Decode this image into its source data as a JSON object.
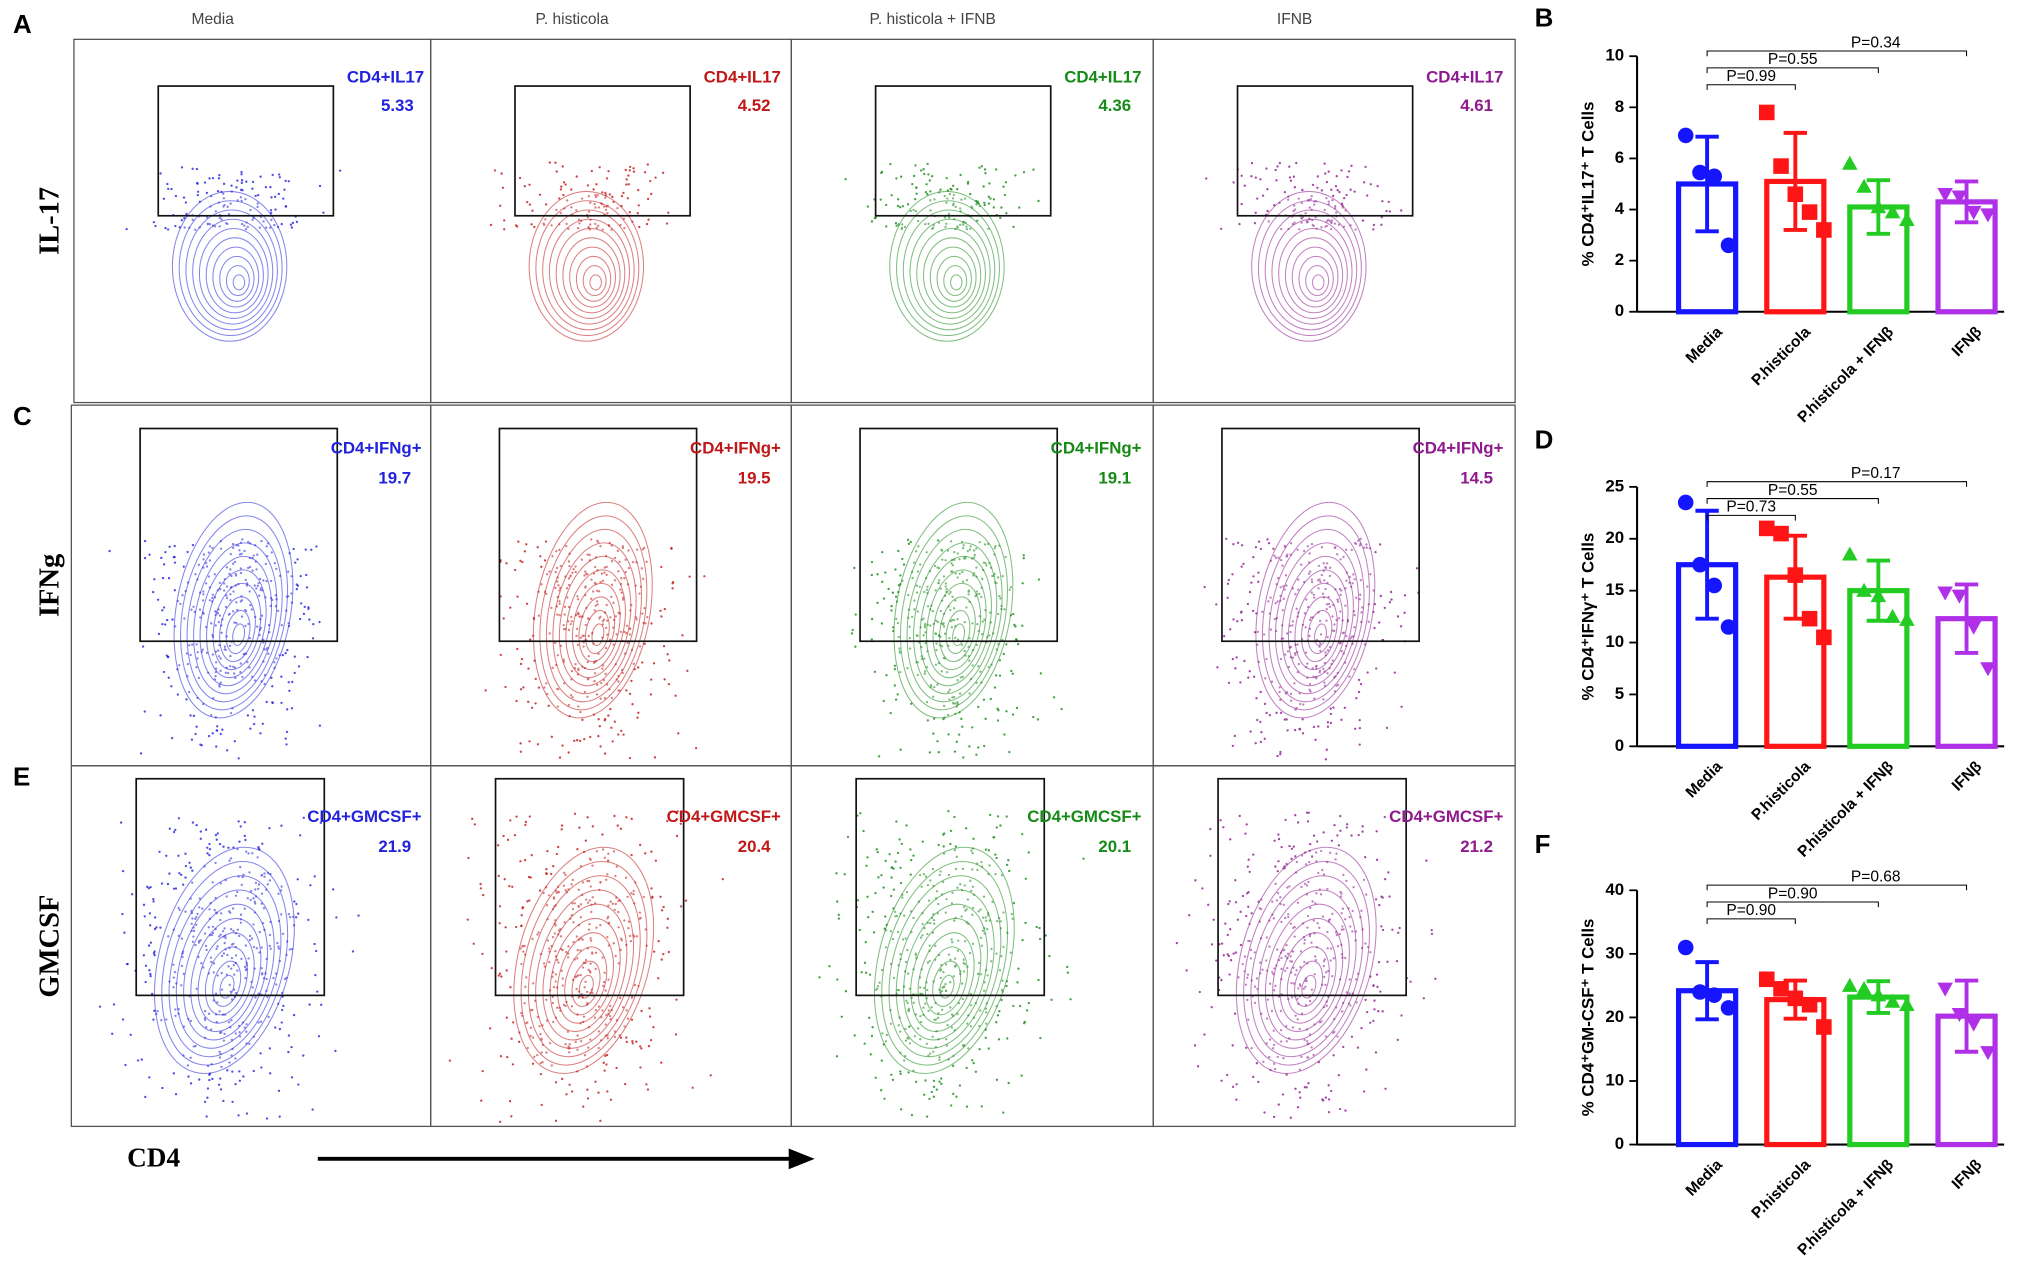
{
  "flow": {
    "columns": [
      "Media",
      "P. histicola",
      "P. histicola + IFNB",
      "IFNB"
    ],
    "colors": [
      "#2222dd",
      "#c01818",
      "#168a16",
      "#8e1a8e"
    ],
    "rows": [
      {
        "letter": "A",
        "label": "IL-17",
        "gates": [
          {
            "name": "CD4+IL17",
            "value": 5.33
          },
          {
            "name": "CD4+IL17",
            "value": 4.52
          },
          {
            "name": "CD4+IL17",
            "value": 4.36
          },
          {
            "name": "CD4+IL17",
            "value": 4.61
          }
        ]
      },
      {
        "letter": "C",
        "label": "IFNg",
        "gates": [
          {
            "name": "CD4+IFNg+",
            "value": 19.7
          },
          {
            "name": "CD4+IFNg+",
            "value": 19.5
          },
          {
            "name": "CD4+IFNg+",
            "value": 19.1
          },
          {
            "name": "CD4+IFNg+",
            "value": 14.5
          }
        ]
      },
      {
        "letter": "E",
        "label": "GMCSF",
        "gates": [
          {
            "name": "CD4+GMCSF+",
            "value": 21.9
          },
          {
            "name": "CD4+GMCSF+",
            "value": 20.4
          },
          {
            "name": "CD4+GMCSF+",
            "value": 20.1
          },
          {
            "name": "CD4+GMCSF+",
            "value": 21.2
          }
        ]
      }
    ],
    "x_label": "CD4"
  },
  "chart_data": [
    {
      "type": "bar",
      "letter": "B",
      "ylabel": "% CD4⁺IL17⁺ T Cells",
      "categories": [
        "Media",
        "P.histicola",
        "P.histicola + IFNβ",
        "IFNβ"
      ],
      "colors": [
        "#1515ff",
        "#ff1515",
        "#22cc22",
        "#b030e8"
      ],
      "markers": [
        "circle",
        "square",
        "triangle",
        "triangle-down"
      ],
      "values": [
        5.0,
        5.1,
        4.1,
        4.3
      ],
      "errors": [
        1.85,
        1.9,
        1.05,
        0.8
      ],
      "points": [
        [
          6.9,
          5.45,
          5.3,
          2.6
        ],
        [
          7.8,
          5.7,
          4.6,
          3.9,
          3.2
        ],
        [
          5.8,
          4.9,
          4.1,
          3.9,
          3.6
        ],
        [
          4.6,
          4.5,
          3.9,
          3.8
        ]
      ],
      "ylim": [
        0,
        10
      ],
      "yticks": [
        0,
        2,
        4,
        6,
        8,
        10
      ],
      "annotations": [
        "P=0.99",
        "P=0.55",
        "P=0.34"
      ]
    },
    {
      "type": "bar",
      "letter": "D",
      "ylabel": "% CD4⁺IFNγ⁺ T Cells",
      "categories": [
        "Media",
        "P.histicola",
        "P.histicola + IFNβ",
        "IFNβ"
      ],
      "colors": [
        "#1515ff",
        "#ff1515",
        "#22cc22",
        "#b030e8"
      ],
      "markers": [
        "circle",
        "square",
        "triangle",
        "triangle-down"
      ],
      "values": [
        17.5,
        16.3,
        15.0,
        12.3
      ],
      "errors": [
        5.2,
        4.0,
        2.9,
        3.3
      ],
      "points": [
        [
          23.5,
          17.5,
          15.5,
          11.5
        ],
        [
          21.0,
          20.5,
          16.5,
          12.3,
          10.5
        ],
        [
          18.5,
          15.0,
          14.5,
          12.5,
          12.2
        ],
        [
          14.8,
          14.5,
          11.5,
          7.5
        ]
      ],
      "ylim": [
        0,
        25
      ],
      "yticks": [
        0,
        5,
        10,
        15,
        20,
        25
      ],
      "annotations": [
        "P=0.73",
        "P=0.55",
        "P=0.17"
      ]
    },
    {
      "type": "bar",
      "letter": "F",
      "ylabel": "% CD4⁺GM-CSF⁺ T Cells",
      "categories": [
        "Media",
        "P.histicola",
        "P.histicola + IFNβ",
        "IFNβ"
      ],
      "colors": [
        "#1515ff",
        "#ff1515",
        "#22cc22",
        "#b030e8"
      ],
      "markers": [
        "circle",
        "square",
        "triangle",
        "triangle-down"
      ],
      "values": [
        24.2,
        22.8,
        23.2,
        20.2
      ],
      "errors": [
        4.5,
        3.0,
        2.5,
        5.6
      ],
      "points": [
        [
          31.0,
          24.0,
          23.5,
          21.5
        ],
        [
          26.0,
          24.5,
          23.0,
          22.0,
          18.5
        ],
        [
          25.0,
          24.5,
          23.5,
          22.5,
          22.0
        ],
        [
          24.5,
          20.5,
          19.0,
          14.5
        ]
      ],
      "ylim": [
        0,
        40
      ],
      "yticks": [
        0,
        10,
        20,
        30,
        40
      ],
      "annotations": [
        "P=0.90",
        "P=0.90",
        "P=0.68"
      ]
    }
  ]
}
